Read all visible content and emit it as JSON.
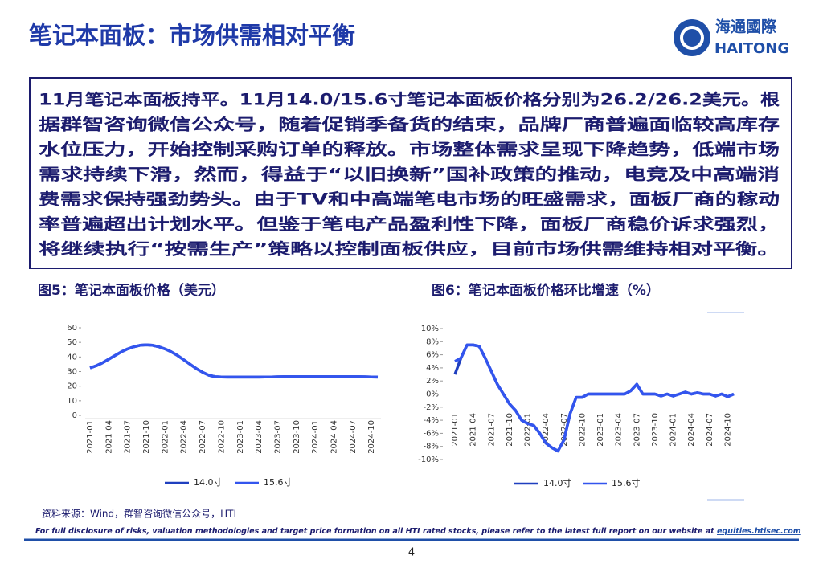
{
  "header": {
    "title": "笔记本面板：市场供需相对平衡",
    "logo_cn": "海通國際",
    "logo_en": "HAITONG"
  },
  "body": {
    "lines": [
      "11月笔记本面板持平。11月14.0/15.6寸笔记本面板价格分别为26.2/26.2美元。根",
      "据群智咨询微信公众号，随着促销季备货的结束，品牌厂商普遍面临较高库存",
      "水位压力，开始控制采购订单的释放。市场整体需求呈现下降趋势，低端市场",
      "需求持续下滑，然而，得益于“以旧换新”国补政策的推动，电竞及中高端消",
      "费需求保持强劲势头。由于TV和中高端笔电市场的旺盛需求，面板厂商的稼动",
      "率普遍超出计划水平。但鉴于笔电产品盈利性下降，面板厂商稳价诉求强烈，",
      "将继续执行“按需生产”策略以控制面板供应，目前市场供需维持相对平衡。"
    ]
  },
  "chart_data": [
    {
      "type": "line",
      "title": "图5：笔记本面板价格（美元）",
      "categories": [
        "2021-01",
        null,
        null,
        "2021-04",
        null,
        null,
        "2021-07",
        null,
        null,
        "2021-10",
        null,
        null,
        "2022-01",
        null,
        null,
        "2022-04",
        null,
        null,
        "2022-07",
        null,
        null,
        "2022-10",
        null,
        null,
        "2023-01",
        null,
        null,
        "2023-04",
        null,
        null,
        "2023-07",
        null,
        null,
        "2023-10",
        null,
        null,
        "2024-01",
        null,
        null,
        "2024-04",
        null,
        null,
        "2024-07",
        null,
        null,
        "2024-10",
        null
      ],
      "series": [
        {
          "name": "14.0寸",
          "color": "#1f3fbf",
          "values": [
            32.5,
            34,
            36,
            38.5,
            41,
            43.5,
            45.5,
            47,
            48,
            48.3,
            48,
            47,
            45.5,
            43.5,
            41,
            38,
            35,
            32,
            29.5,
            27.5,
            26.5,
            26.3,
            26.2,
            26.2,
            26.2,
            26.2,
            26.2,
            26.2,
            26.3,
            26.3,
            26.4,
            26.5,
            26.5,
            26.5,
            26.5,
            26.5,
            26.5,
            26.5,
            26.5,
            26.5,
            26.5,
            26.5,
            26.5,
            26.5,
            26.4,
            26.3,
            26.2
          ]
        },
        {
          "name": "15.6寸",
          "color": "#3355ee",
          "values": [
            32.5,
            34,
            36,
            38.5,
            41,
            43.5,
            45.5,
            47,
            48,
            48.3,
            48,
            47,
            45.5,
            43.5,
            41,
            38,
            35,
            32,
            29.5,
            27.5,
            26.5,
            26.3,
            26.2,
            26.2,
            26.2,
            26.2,
            26.2,
            26.2,
            26.3,
            26.3,
            26.4,
            26.5,
            26.5,
            26.5,
            26.5,
            26.5,
            26.5,
            26.5,
            26.5,
            26.5,
            26.5,
            26.5,
            26.5,
            26.5,
            26.4,
            26.3,
            26.2
          ]
        }
      ],
      "ylim": [
        0,
        60
      ],
      "yticks": [
        0,
        10,
        20,
        30,
        40,
        50,
        60
      ]
    },
    {
      "type": "line",
      "title": "图6：笔记本面板价格环比增速（%）",
      "categories": [
        "2021-01",
        null,
        null,
        "2021-04",
        null,
        null,
        "2021-07",
        null,
        null,
        "2021-10",
        null,
        null,
        "2022-01",
        null,
        null,
        "2022-04",
        null,
        null,
        "2022-07",
        null,
        null,
        "2022-10",
        null,
        null,
        "2023-01",
        null,
        null,
        "2023-04",
        null,
        null,
        "2023-07",
        null,
        null,
        "2023-10",
        null,
        null,
        "2024-01",
        null,
        null,
        "2024-04",
        null,
        null,
        "2024-07",
        null,
        null,
        "2024-10",
        null
      ],
      "series": [
        {
          "name": "14.0寸",
          "color": "#1f3fbf",
          "values": [
            3,
            5.5,
            7.5,
            7.5,
            7.3,
            5.5,
            3.5,
            1.5,
            0,
            -1.5,
            -2.5,
            -4,
            -4.5,
            -4.8,
            -6,
            -7.5,
            -8.2,
            -8.7,
            -7,
            -3,
            -0.5,
            -0.5,
            0,
            0,
            0,
            0,
            0,
            0,
            0,
            0.5,
            1.5,
            0,
            0,
            0,
            -0.3,
            0,
            -0.3,
            0,
            0.3,
            0,
            0.2,
            0,
            0,
            -0.3,
            0,
            -0.4,
            0
          ]
        },
        {
          "name": "15.6寸",
          "color": "#3355ee",
          "values": [
            5,
            5.5,
            7.5,
            7.5,
            7.3,
            5.5,
            3.5,
            1.5,
            0,
            -1.5,
            -2.5,
            -4,
            -4.5,
            -4.8,
            -6,
            -7.5,
            -8.2,
            -8.7,
            -7,
            -3,
            -0.5,
            -0.5,
            0,
            0,
            0,
            0,
            0,
            0,
            0,
            0.5,
            1.5,
            0,
            0,
            0,
            -0.3,
            0,
            -0.3,
            0,
            0.3,
            0,
            0.2,
            0,
            0,
            -0.3,
            0,
            -0.4,
            0
          ]
        }
      ],
      "ylim": [
        -10,
        10
      ],
      "yticks": [
        {
          "value": -10,
          "label": "-10%"
        },
        {
          "value": -8,
          "label": "-8%"
        },
        {
          "value": -6,
          "label": "-6%"
        },
        {
          "value": -4,
          "label": "-4%"
        },
        {
          "value": -2,
          "label": "-2%"
        },
        {
          "value": 0,
          "label": "0%"
        },
        {
          "value": 2,
          "label": "2%"
        },
        {
          "value": 4,
          "label": "4%"
        },
        {
          "value": 6,
          "label": "6%"
        },
        {
          "value": 8,
          "label": "8%"
        },
        {
          "value": 10,
          "label": "10%"
        }
      ]
    }
  ],
  "source": "资料来源：Wind，群智咨询微信公众号，HTI",
  "footer": {
    "disclaimer": "For full disclosure of risks, valuation methodologies and target price formation on all HTI rated stocks, please refer to the latest full report on our website at",
    "link": "equities.htisec.com",
    "page": 4
  }
}
